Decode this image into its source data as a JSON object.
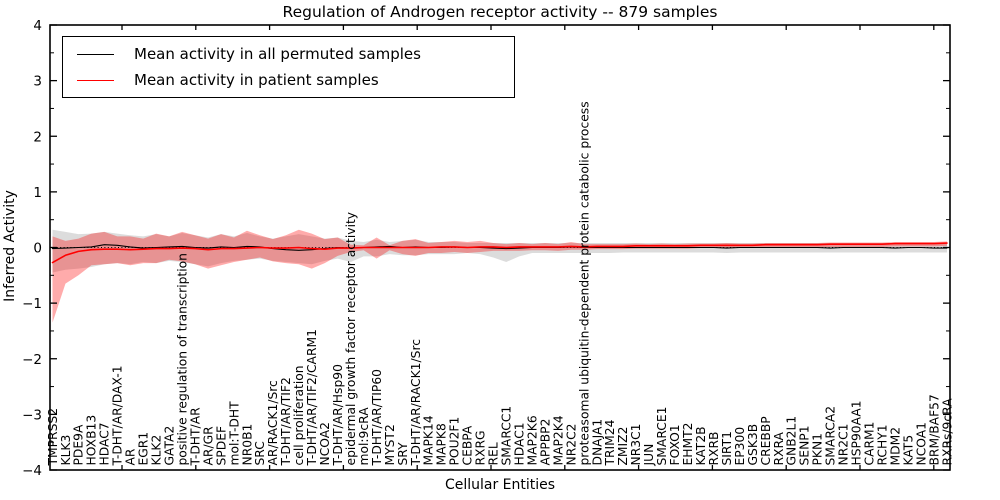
{
  "figure": {
    "title": "Regulation of Androgen receptor activity -- 879 samples",
    "xlabel": "Cellular Entities",
    "ylabel": "Inferred Activity"
  },
  "legend": {
    "items": [
      {
        "key": "permuted",
        "label": "Mean activity in all permuted samples",
        "color": "#000000"
      },
      {
        "key": "patient",
        "label": "Mean activity in patient samples",
        "color": "#ff0000"
      }
    ]
  },
  "chart_data": {
    "type": "line",
    "title": "Regulation of Androgen receptor activity -- 879 samples",
    "xlabel": "Cellular Entities",
    "ylabel": "Inferred Activity",
    "ylim": [
      -4,
      4
    ],
    "grid": false,
    "legend_position": "upper left",
    "zero_line": true,
    "ytick_values": [
      4,
      3,
      2,
      1,
      0,
      -1,
      -2,
      -3,
      -4
    ],
    "ytick_labels": [
      "4",
      "3",
      "2",
      "1",
      "0",
      "−1",
      "−2",
      "−3",
      "−4"
    ],
    "categories": [
      "TMPRSS2",
      "KLK3",
      "PDE9A",
      "HOXB13",
      "HDAC7",
      "T-DHT/AR/DAX-1",
      "AR",
      "EGR1",
      "KLK2",
      "GATA2",
      "positive regulation of transcription",
      "T-DHT/AR",
      "AR/GR",
      "SPDEF",
      "mol:T-DHT",
      "NR0B1",
      "SRC",
      "AR/RACK1/Src",
      "T-DHT/AR/TIF2",
      "cell proliferation",
      "T-DHT/AR/TIF2/CARM1",
      "NCOA2",
      "T-DHT/AR/Hsp90",
      "epidermal growth factor receptor activity",
      "mol:9cRA",
      "T-DHT/AR/TIP60",
      "MYST2",
      "SRY",
      "T-DHT/AR/RACK1/Src",
      "MAPK14",
      "MAPK8",
      "POU2F1",
      "CEBPA",
      "RXRG",
      "REL",
      "SMARCC1",
      "HDAC1",
      "MAP2K6",
      "APPBP2",
      "MAP2K4",
      "NR2C2",
      "proteasomal ubiquitin-dependent protein catabolic process",
      "DNAJA1",
      "TRIM24",
      "ZMIZ2",
      "NR3C1",
      "JUN",
      "SMARCE1",
      "FOXO1",
      "EHMT2",
      "KAT2B",
      "RXRB",
      "SIRT1",
      "EP300",
      "GSK3B",
      "CREBBP",
      "RXRA",
      "GNB2L1",
      "SENP1",
      "PKN1",
      "SMARCA2",
      "NR2C1",
      "HSP90AA1",
      "CARM1",
      "RCHY1",
      "MDM2",
      "KAT5",
      "NCOA1",
      "BRM/BAF57",
      "RXRs/9cRA"
    ],
    "series": [
      {
        "key": "permuted",
        "name": "Mean activity in all permuted samples",
        "color": "#000000",
        "width": 1.1,
        "values": [
          -0.02,
          -0.01,
          0.0,
          0.01,
          0.05,
          0.04,
          0.01,
          -0.01,
          0.0,
          0.01,
          0.02,
          0.0,
          -0.01,
          0.01,
          0.0,
          0.02,
          0.01,
          -0.02,
          -0.04,
          -0.05,
          -0.04,
          -0.02,
          0.0,
          -0.01,
          0.0,
          0.01,
          0.02,
          0.0,
          0.01,
          0.0,
          0.0,
          0.01,
          0.0,
          0.0,
          -0.01,
          -0.02,
          -0.01,
          0.0,
          0.0,
          0.0,
          0.01,
          0.0,
          0.0,
          0.0,
          0.0,
          0.0,
          0.0,
          0.0,
          0.0,
          0.0,
          0.0,
          0.0,
          -0.01,
          0.0,
          0.0,
          0.0,
          0.0,
          0.0,
          0.0,
          0.0,
          -0.01,
          0.0,
          0.0,
          0.0,
          0.0,
          -0.01,
          0.0,
          0.0,
          -0.01,
          -0.01
        ]
      },
      {
        "key": "patient",
        "name": "Mean activity in patient samples",
        "color": "#ff0000",
        "width": 1.6,
        "values": [
          -0.27,
          -0.14,
          -0.07,
          -0.04,
          -0.03,
          -0.03,
          -0.04,
          -0.03,
          -0.02,
          -0.02,
          -0.01,
          -0.02,
          -0.04,
          -0.02,
          -0.02,
          -0.01,
          0.0,
          -0.01,
          -0.01,
          0.0,
          -0.02,
          -0.03,
          -0.01,
          -0.01,
          0.0,
          0.0,
          0.0,
          0.0,
          0.0,
          0.0,
          0.01,
          0.01,
          0.0,
          0.01,
          0.01,
          0.0,
          0.01,
          0.01,
          0.01,
          0.01,
          0.02,
          0.01,
          0.02,
          0.02,
          0.02,
          0.03,
          0.03,
          0.03,
          0.03,
          0.03,
          0.04,
          0.04,
          0.04,
          0.04,
          0.04,
          0.05,
          0.05,
          0.05,
          0.05,
          0.05,
          0.06,
          0.06,
          0.06,
          0.06,
          0.06,
          0.07,
          0.07,
          0.07,
          0.07,
          0.08
        ]
      }
    ],
    "bands": [
      {
        "name": "permuted-range",
        "color": "#808080",
        "opacity": 0.28,
        "upper": [
          0.32,
          0.28,
          0.24,
          0.25,
          0.28,
          0.25,
          0.22,
          0.2,
          0.24,
          0.2,
          0.26,
          0.22,
          0.18,
          0.24,
          0.2,
          0.26,
          0.2,
          0.16,
          0.2,
          0.24,
          0.2,
          0.16,
          0.18,
          0.12,
          0.1,
          0.14,
          0.1,
          0.12,
          0.14,
          0.1,
          0.1,
          0.1,
          0.08,
          0.08,
          0.08,
          0.08,
          0.08,
          0.08,
          0.08,
          0.08,
          0.08,
          0.08,
          0.08,
          0.08,
          0.08,
          0.08,
          0.08,
          0.08,
          0.08,
          0.08,
          0.08,
          0.08,
          0.08,
          0.08,
          0.08,
          0.08,
          0.08,
          0.08,
          0.08,
          0.08,
          0.08,
          0.08,
          0.08,
          0.08,
          0.08,
          0.08,
          0.08,
          0.08,
          0.08,
          0.08
        ],
        "lower": [
          -0.45,
          -0.4,
          -0.38,
          -0.35,
          -0.3,
          -0.28,
          -0.3,
          -0.26,
          -0.28,
          -0.24,
          -0.26,
          -0.3,
          -0.34,
          -0.28,
          -0.24,
          -0.22,
          -0.2,
          -0.24,
          -0.26,
          -0.28,
          -0.3,
          -0.24,
          -0.2,
          -0.26,
          -0.16,
          -0.16,
          -0.12,
          -0.14,
          -0.14,
          -0.12,
          -0.12,
          -0.12,
          -0.1,
          -0.12,
          -0.18,
          -0.26,
          -0.16,
          -0.1,
          -0.1,
          -0.1,
          -0.1,
          -0.1,
          -0.1,
          -0.1,
          -0.09,
          -0.09,
          -0.09,
          -0.09,
          -0.09,
          -0.09,
          -0.09,
          -0.09,
          -0.1,
          -0.09,
          -0.09,
          -0.09,
          -0.09,
          -0.09,
          -0.09,
          -0.09,
          -0.09,
          -0.09,
          -0.09,
          -0.09,
          -0.09,
          -0.09,
          -0.09,
          -0.09,
          -0.09,
          -0.09
        ]
      },
      {
        "name": "patient-range",
        "color": "#ff0000",
        "opacity": 0.33,
        "upper": [
          0.2,
          0.12,
          0.16,
          0.25,
          0.28,
          0.2,
          0.2,
          0.16,
          0.25,
          0.2,
          0.28,
          0.22,
          0.16,
          0.24,
          0.18,
          0.3,
          0.22,
          0.15,
          0.22,
          0.32,
          0.25,
          0.15,
          0.18,
          0.05,
          0.04,
          0.18,
          0.04,
          0.12,
          0.15,
          0.08,
          0.1,
          0.12,
          0.1,
          0.12,
          0.08,
          0.06,
          0.08,
          0.06,
          0.08,
          0.06,
          0.1,
          0.06,
          0.06,
          0.06,
          0.06,
          0.07,
          0.06,
          0.07,
          0.06,
          0.07,
          0.07,
          0.07,
          0.08,
          0.07,
          0.07,
          0.08,
          0.08,
          0.08,
          0.08,
          0.08,
          0.09,
          0.09,
          0.09,
          0.09,
          0.09,
          0.1,
          0.1,
          0.1,
          0.1,
          0.11
        ],
        "lower": [
          -1.35,
          -0.65,
          -0.5,
          -0.32,
          -0.3,
          -0.28,
          -0.32,
          -0.28,
          -0.28,
          -0.22,
          -0.25,
          -0.3,
          -0.38,
          -0.32,
          -0.26,
          -0.22,
          -0.18,
          -0.25,
          -0.28,
          -0.3,
          -0.38,
          -0.28,
          -0.15,
          -0.08,
          -0.05,
          -0.2,
          -0.05,
          -0.12,
          -0.15,
          -0.1,
          -0.1,
          -0.08,
          -0.1,
          -0.08,
          -0.06,
          -0.06,
          -0.06,
          -0.05,
          -0.05,
          -0.06,
          -0.04,
          -0.04,
          -0.03,
          -0.03,
          -0.03,
          -0.02,
          -0.02,
          -0.02,
          -0.02,
          -0.02,
          -0.01,
          -0.01,
          -0.01,
          -0.01,
          -0.01,
          0.0,
          0.0,
          0.0,
          0.0,
          0.0,
          0.01,
          0.01,
          0.01,
          0.01,
          0.01,
          0.02,
          0.02,
          0.02,
          0.02,
          0.03
        ]
      }
    ]
  }
}
